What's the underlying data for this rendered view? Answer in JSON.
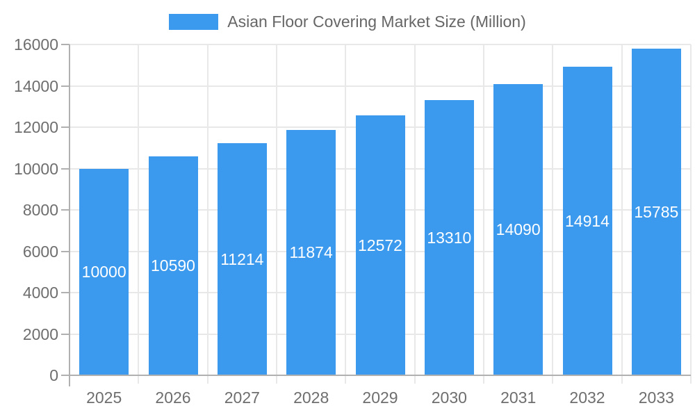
{
  "legend": {
    "series_label": "Asian Floor Covering Market Size (Million)"
  },
  "chart_data": {
    "type": "bar",
    "title": "Asian Floor Covering Market Size (Million)",
    "categories": [
      "2025",
      "2026",
      "2027",
      "2028",
      "2029",
      "2030",
      "2031",
      "2032",
      "2033"
    ],
    "values": [
      10000,
      10590,
      11214,
      11874,
      12572,
      13310,
      14090,
      14914,
      15785
    ],
    "xlabel": "",
    "ylabel": "",
    "ylim": [
      0,
      16000
    ],
    "yticks": [
      0,
      2000,
      4000,
      6000,
      8000,
      10000,
      12000,
      14000,
      16000
    ],
    "grid": true,
    "legend_position": "top-center",
    "bar_label_position": "inside-center",
    "colors": {
      "bar": "#3B99EE",
      "bar_label": "#FFFFFF",
      "grid": "#E8E8E8",
      "axis": "#B0B0B0",
      "tick_label": "#6E6E6E",
      "legend_text": "#666666",
      "background": "#FFFFFF"
    }
  }
}
